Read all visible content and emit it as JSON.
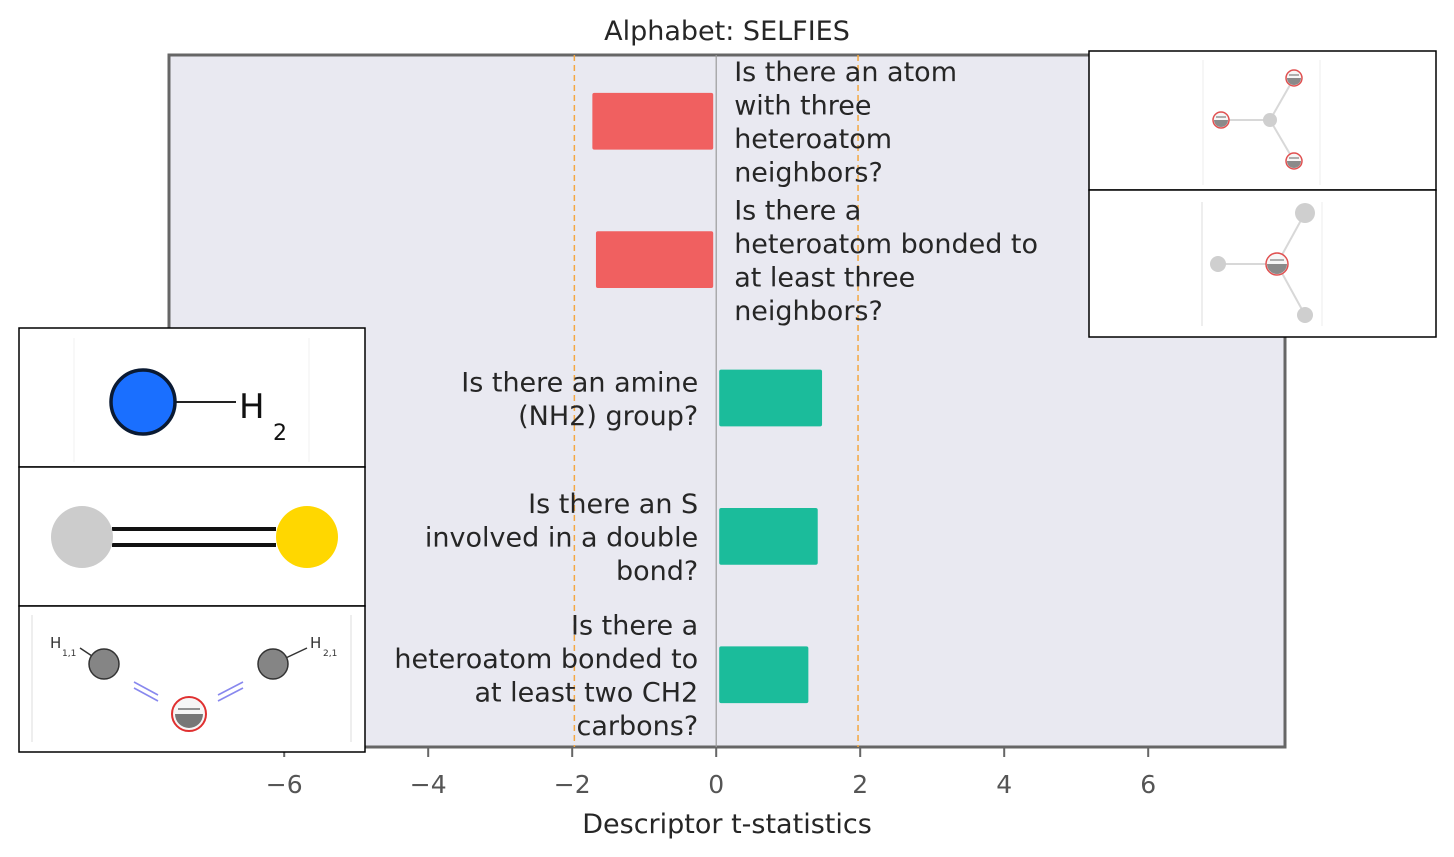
{
  "chart_data": {
    "type": "bar",
    "orientation": "horizontal",
    "title": "Alphabet: SELFIES",
    "xlabel": "Descriptor t-statistics",
    "ylabel": "",
    "xlim": [
      -7.6,
      7.9
    ],
    "xticks": [
      -6,
      -4,
      -2,
      0,
      2,
      4,
      6
    ],
    "xtick_labels": [
      "−6",
      "−4",
      "−2",
      "0",
      "2",
      "4",
      "6"
    ],
    "significance_lines": [
      -1.97,
      1.97
    ],
    "grid": false,
    "colors": {
      "negative": "#f06060",
      "positive": "#1bbc9b",
      "threshold": "#f4a742",
      "background": "#e9e9f1",
      "frame": "#666666"
    },
    "bars": [
      {
        "label": [
          "Is there an atom",
          "with three",
          "heteroatom",
          "neighbors?"
        ],
        "value": -1.72
      },
      {
        "label": [
          "Is there a",
          "heteroatom bonded to",
          "at least three",
          "neighbors?"
        ],
        "value": -1.67
      },
      {
        "label": [
          "Is there an amine",
          "(NH2) group?"
        ],
        "value": 1.47
      },
      {
        "label": [
          "Is there an S",
          "involved in a double",
          "bond?"
        ],
        "value": 1.41
      },
      {
        "label": [
          "Is there a",
          "heteroatom bonded to",
          "at least two CH2",
          "carbons?"
        ],
        "value": 1.28
      }
    ]
  },
  "molecule_panels": {
    "amine": {
      "subscript_label": "H",
      "subscript": "2",
      "atom_color": "#1a6fff"
    },
    "thione": {
      "atom_colors": [
        "#cccccc",
        "#ffd700"
      ]
    },
    "ch2": {
      "left_label": "H",
      "left_subscript": "1,1",
      "right_label": "H",
      "right_subscript": "2,1"
    }
  }
}
